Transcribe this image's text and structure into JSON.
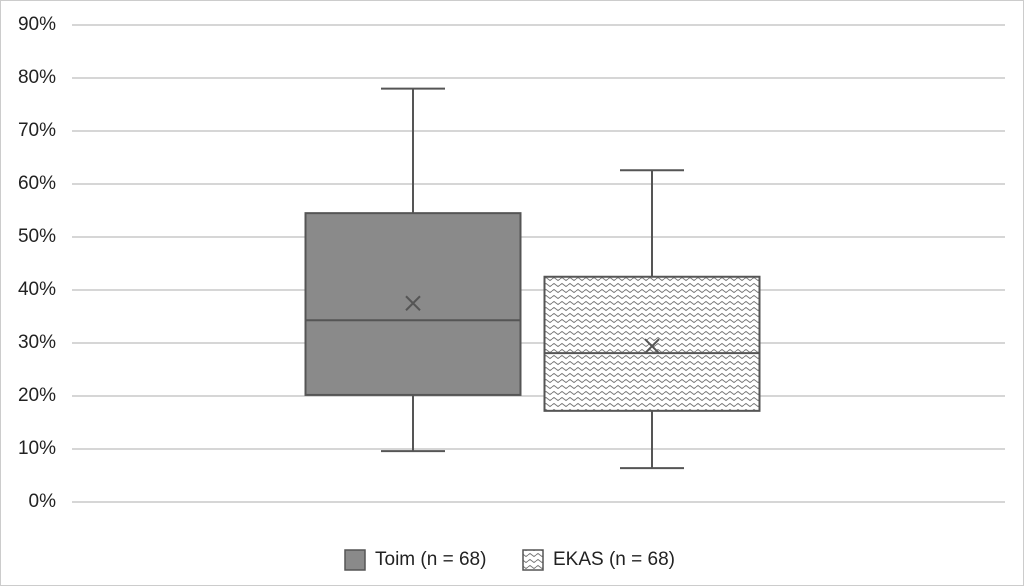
{
  "chart_data": {
    "type": "box",
    "series": [
      {
        "name": "Toim (n = 68)",
        "color": "#8a8a8a",
        "pattern": "solid",
        "min": 9.6,
        "q1": 20.2,
        "median": 34.3,
        "q3": 54.5,
        "max": 78,
        "mean": 37.5
      },
      {
        "name": "EKAS (n = 68)",
        "color": "#ffffff",
        "pattern": "wave",
        "min": 6.4,
        "q1": 17.2,
        "median": 28.1,
        "q3": 42.5,
        "max": 62.6,
        "mean": 29.4
      }
    ],
    "ylim": [
      0,
      90
    ],
    "yticks": [
      {
        "value": 0,
        "label": "0%"
      },
      {
        "value": 10,
        "label": "10%"
      },
      {
        "value": 20,
        "label": "20%"
      },
      {
        "value": 30,
        "label": "30%"
      },
      {
        "value": 40,
        "label": "40%"
      },
      {
        "value": 50,
        "label": "50%"
      },
      {
        "value": 60,
        "label": "60%"
      },
      {
        "value": 70,
        "label": "70%"
      },
      {
        "value": 80,
        "label": "80%"
      },
      {
        "value": 90,
        "label": "90%"
      }
    ],
    "grid": true,
    "legend": "bottom"
  }
}
